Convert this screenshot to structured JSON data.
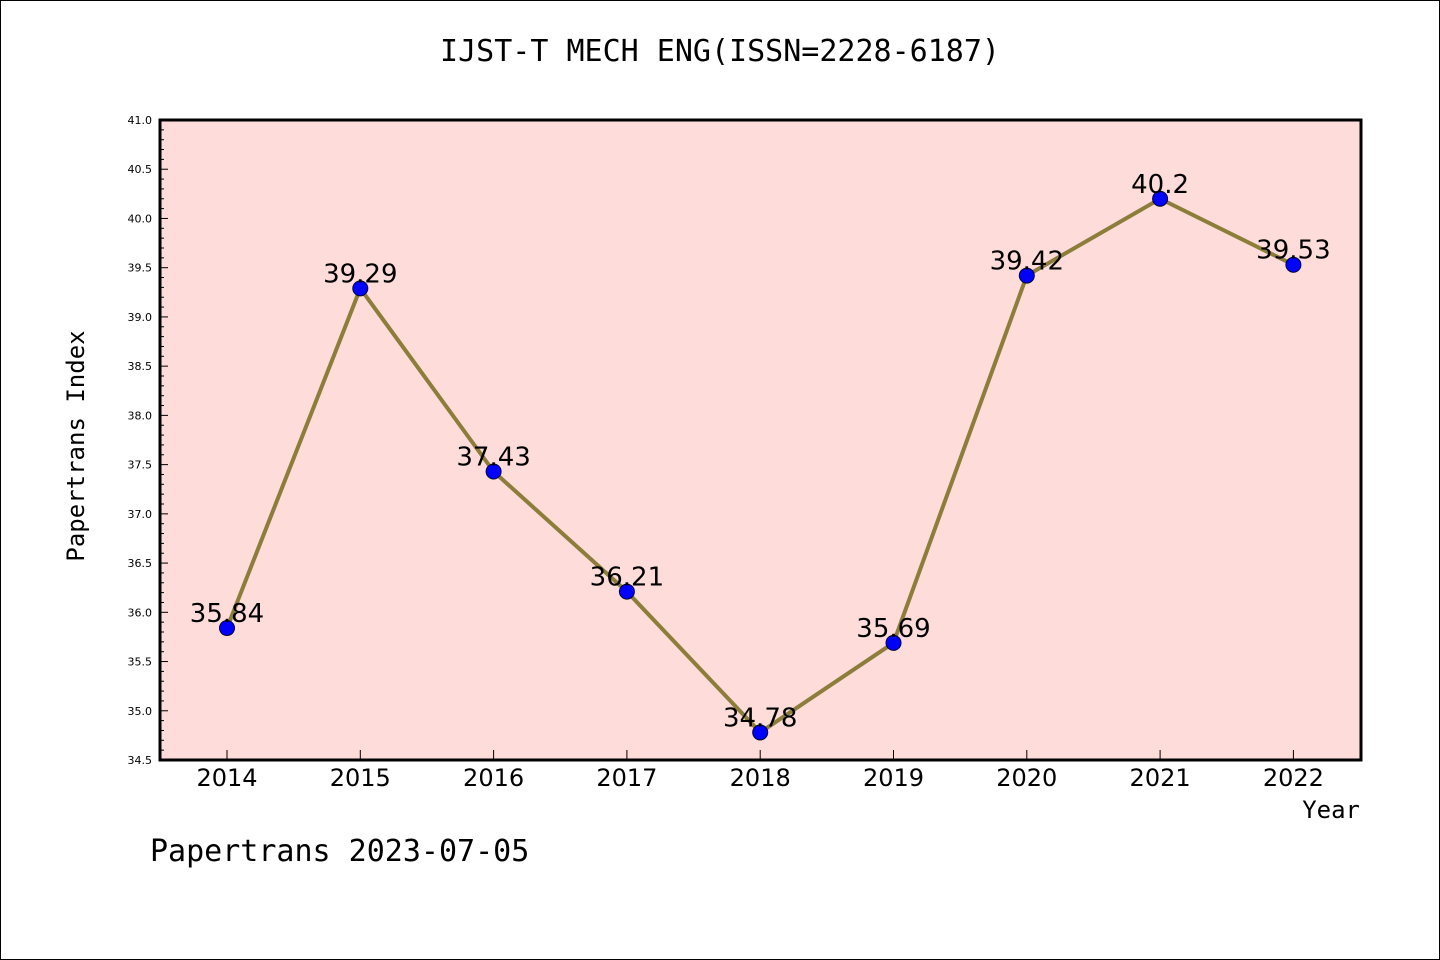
{
  "chart_data": {
    "type": "line",
    "title": "IJST-T MECH ENG(ISSN=2228-6187)",
    "xlabel": "Year",
    "ylabel": "Papertrans Index",
    "categories": [
      "2014",
      "2015",
      "2016",
      "2017",
      "2018",
      "2019",
      "2020",
      "2021",
      "2022"
    ],
    "values": [
      35.84,
      39.29,
      37.43,
      36.21,
      34.78,
      35.69,
      39.42,
      40.2,
      39.53
    ],
    "data_labels": [
      "35.84",
      "39.29",
      "37.43",
      "36.21",
      "34.78",
      "35.69",
      "39.42",
      "40.2",
      "39.53"
    ],
    "ylim": [
      34.5,
      41.0
    ],
    "yticks": [
      "34.5",
      "35.0",
      "35.5",
      "36.0",
      "36.5",
      "37.0",
      "37.5",
      "38.0",
      "38.5",
      "39.0",
      "39.5",
      "40.0",
      "40.5",
      "41.0"
    ],
    "grid": false,
    "colors": {
      "plot_background": "#fddcd9",
      "line": "#8c7d3a",
      "marker": "#0000ff"
    }
  },
  "footer": "Papertrans 2023-07-05"
}
